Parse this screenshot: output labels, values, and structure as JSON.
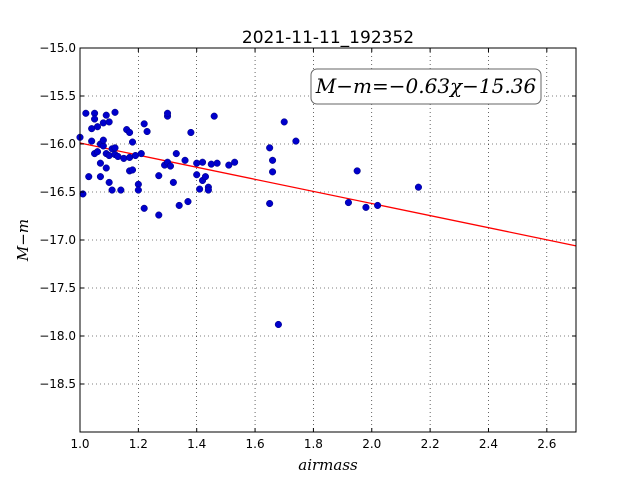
{
  "chart_data": {
    "type": "scatter",
    "title": "2021-11-11_192352",
    "xlabel": "airmass",
    "ylabel": "M−m",
    "xlim": [
      1.0,
      2.7
    ],
    "ylim": [
      -15.0,
      -19.0
    ],
    "xticks": [
      1.0,
      1.2,
      1.4,
      1.6,
      1.8,
      2.0,
      2.2,
      2.4,
      2.6
    ],
    "xtick_labels": [
      "1.0",
      "1.2",
      "1.4",
      "1.6",
      "1.8",
      "2.0",
      "2.2",
      "2.4",
      "2.6"
    ],
    "yticks": [
      -15.0,
      -15.5,
      -16.0,
      -16.5,
      -17.0,
      -17.5,
      -18.0,
      -18.5
    ],
    "ytick_labels": [
      "−15.0",
      "−15.5",
      "−16.0",
      "−16.5",
      "−17.0",
      "−17.5",
      "−18.0",
      "−18.5"
    ],
    "grid": true,
    "annotation": "M−m=−0.63χ−15.36",
    "fit": {
      "slope": -0.63,
      "intercept": -15.36,
      "color": "#ff0000"
    },
    "point_color": "#0000cc",
    "points": [
      [
        1.0,
        -15.93
      ],
      [
        1.01,
        -16.52
      ],
      [
        1.02,
        -15.68
      ],
      [
        1.03,
        -16.34
      ],
      [
        1.04,
        -15.84
      ],
      [
        1.04,
        -15.97
      ],
      [
        1.05,
        -15.68
      ],
      [
        1.05,
        -15.74
      ],
      [
        1.06,
        -15.82
      ],
      [
        1.05,
        -16.1
      ],
      [
        1.06,
        -16.08
      ],
      [
        1.07,
        -16.0
      ],
      [
        1.07,
        -16.2
      ],
      [
        1.07,
        -16.34
      ],
      [
        1.08,
        -16.02
      ],
      [
        1.08,
        -15.78
      ],
      [
        1.08,
        -15.96
      ],
      [
        1.09,
        -16.1
      ],
      [
        1.1,
        -15.77
      ],
      [
        1.1,
        -16.12
      ],
      [
        1.09,
        -15.7
      ],
      [
        1.09,
        -16.25
      ],
      [
        1.1,
        -16.4
      ],
      [
        1.11,
        -16.05
      ],
      [
        1.11,
        -16.48
      ],
      [
        1.12,
        -16.04
      ],
      [
        1.12,
        -16.11
      ],
      [
        1.12,
        -15.67
      ],
      [
        1.13,
        -16.13
      ],
      [
        1.15,
        -16.15
      ],
      [
        1.14,
        -16.48
      ],
      [
        1.16,
        -15.85
      ],
      [
        1.17,
        -15.88
      ],
      [
        1.17,
        -16.14
      ],
      [
        1.17,
        -16.28
      ],
      [
        1.18,
        -16.27
      ],
      [
        1.18,
        -15.98
      ],
      [
        1.19,
        -16.12
      ],
      [
        1.2,
        -16.42
      ],
      [
        1.2,
        -16.48
      ],
      [
        1.21,
        -16.1
      ],
      [
        1.22,
        -15.79
      ],
      [
        1.22,
        -16.67
      ],
      [
        1.23,
        -15.87
      ],
      [
        1.27,
        -16.33
      ],
      [
        1.27,
        -16.74
      ],
      [
        1.29,
        -16.22
      ],
      [
        1.3,
        -15.71
      ],
      [
        1.3,
        -15.68
      ],
      [
        1.3,
        -16.19
      ],
      [
        1.31,
        -16.23
      ],
      [
        1.32,
        -16.4
      ],
      [
        1.33,
        -16.1
      ],
      [
        1.34,
        -16.64
      ],
      [
        1.36,
        -16.17
      ],
      [
        1.37,
        -16.6
      ],
      [
        1.38,
        -15.88
      ],
      [
        1.4,
        -16.32
      ],
      [
        1.4,
        -16.2
      ],
      [
        1.41,
        -16.47
      ],
      [
        1.42,
        -16.38
      ],
      [
        1.42,
        -16.19
      ],
      [
        1.43,
        -16.34
      ],
      [
        1.44,
        -16.45
      ],
      [
        1.44,
        -16.48
      ],
      [
        1.45,
        -16.21
      ],
      [
        1.46,
        -15.71
      ],
      [
        1.47,
        -16.2
      ],
      [
        1.51,
        -16.22
      ],
      [
        1.53,
        -16.19
      ],
      [
        1.65,
        -16.04
      ],
      [
        1.65,
        -16.62
      ],
      [
        1.66,
        -16.17
      ],
      [
        1.66,
        -16.29
      ],
      [
        1.68,
        -17.88
      ],
      [
        1.7,
        -15.77
      ],
      [
        1.74,
        -15.97
      ],
      [
        1.92,
        -16.61
      ],
      [
        1.95,
        -16.28
      ],
      [
        1.98,
        -16.66
      ],
      [
        2.02,
        -16.64
      ],
      [
        2.16,
        -16.45
      ]
    ]
  }
}
